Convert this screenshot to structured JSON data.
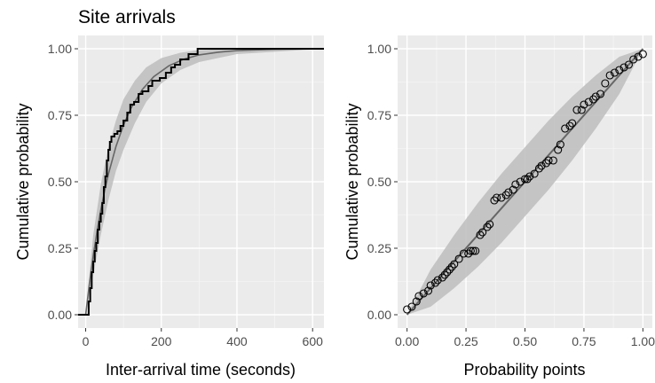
{
  "chart_data": [
    {
      "type": "line",
      "title": "Site arrivals",
      "xlabel": "Inter-arrival time (seconds)",
      "ylabel": "Cumulative probability",
      "xlim": [
        -20,
        630
      ],
      "ylim": [
        -0.05,
        1.05
      ],
      "xticks": [
        0,
        200,
        400,
        600
      ],
      "yticks": [
        "0.00",
        "0.25",
        "0.50",
        "0.75",
        "1.00"
      ],
      "grid": true,
      "background": "#ebebeb",
      "series": [
        {
          "kind": "empirical-step",
          "color": "#000000",
          "points": [
            [
              -20,
              0
            ],
            [
              5,
              0
            ],
            [
              8,
              0.05
            ],
            [
              12,
              0.1
            ],
            [
              16,
              0.16
            ],
            [
              20,
              0.2
            ],
            [
              24,
              0.24
            ],
            [
              28,
              0.27
            ],
            [
              32,
              0.32
            ],
            [
              36,
              0.35
            ],
            [
              40,
              0.38
            ],
            [
              44,
              0.42
            ],
            [
              48,
              0.48
            ],
            [
              52,
              0.52
            ],
            [
              56,
              0.58
            ],
            [
              60,
              0.62
            ],
            [
              64,
              0.65
            ],
            [
              68,
              0.67
            ],
            [
              76,
              0.68
            ],
            [
              84,
              0.69
            ],
            [
              92,
              0.71
            ],
            [
              100,
              0.73
            ],
            [
              110,
              0.76
            ],
            [
              118,
              0.79
            ],
            [
              128,
              0.8
            ],
            [
              140,
              0.83
            ],
            [
              150,
              0.84
            ],
            [
              166,
              0.86
            ],
            [
              176,
              0.88
            ],
            [
              196,
              0.89
            ],
            [
              212,
              0.91
            ],
            [
              226,
              0.93
            ],
            [
              236,
              0.94
            ],
            [
              250,
              0.96
            ],
            [
              272,
              0.98
            ],
            [
              296,
              1.0
            ],
            [
              630,
              1.0
            ]
          ]
        },
        {
          "kind": "fitted-cdf",
          "color": "#666666",
          "rate": 0.0125,
          "x": [
            0,
            10,
            20,
            30,
            40,
            50,
            60,
            80,
            100,
            120,
            150,
            180,
            220,
            260,
            300,
            350,
            400,
            500,
            630
          ],
          "y": [
            0,
            0.118,
            0.221,
            0.313,
            0.393,
            0.465,
            0.528,
            0.632,
            0.713,
            0.777,
            0.847,
            0.895,
            0.936,
            0.961,
            0.977,
            0.987,
            0.993,
            0.998,
            1.0
          ]
        }
      ],
      "band": {
        "color": "#bdbdbd",
        "x": [
          0,
          20,
          40,
          60,
          80,
          100,
          130,
          160,
          200,
          250,
          300,
          400,
          630
        ],
        "lower": [
          0,
          0.15,
          0.3,
          0.43,
          0.54,
          0.62,
          0.72,
          0.8,
          0.87,
          0.92,
          0.95,
          0.98,
          1.0
        ],
        "upper": [
          0,
          0.3,
          0.49,
          0.63,
          0.73,
          0.81,
          0.88,
          0.93,
          0.965,
          0.985,
          0.995,
          1.0,
          1.0
        ]
      }
    },
    {
      "type": "scatter",
      "xlabel": "Probability points",
      "ylabel": "Cumulative probability",
      "xlim": [
        -0.04,
        1.04
      ],
      "ylim": [
        -0.05,
        1.05
      ],
      "xticks": [
        "0.00",
        "0.25",
        "0.50",
        "0.75",
        "1.00"
      ],
      "yticks": [
        "0.00",
        "0.25",
        "0.50",
        "0.75",
        "1.00"
      ],
      "grid": true,
      "background": "#ebebeb",
      "reference_line": {
        "x": [
          0,
          1
        ],
        "y": [
          0,
          1
        ],
        "color": "#666666"
      },
      "band": {
        "color": "#bdbdbd",
        "x": [
          0,
          0.1,
          0.2,
          0.3,
          0.4,
          0.5,
          0.6,
          0.7,
          0.8,
          0.9,
          1.0
        ],
        "lower": [
          0,
          0.03,
          0.1,
          0.18,
          0.27,
          0.37,
          0.47,
          0.58,
          0.7,
          0.83,
          1.0
        ],
        "upper": [
          0,
          0.17,
          0.3,
          0.42,
          0.53,
          0.63,
          0.73,
          0.82,
          0.9,
          0.97,
          1.0
        ]
      },
      "points": {
        "x": [
          0.0,
          0.02,
          0.04,
          0.05,
          0.07,
          0.09,
          0.1,
          0.12,
          0.13,
          0.15,
          0.16,
          0.17,
          0.18,
          0.19,
          0.2,
          0.22,
          0.24,
          0.26,
          0.27,
          0.28,
          0.29,
          0.31,
          0.32,
          0.34,
          0.35,
          0.37,
          0.38,
          0.4,
          0.42,
          0.43,
          0.45,
          0.46,
          0.48,
          0.5,
          0.51,
          0.52,
          0.54,
          0.56,
          0.57,
          0.59,
          0.6,
          0.62,
          0.64,
          0.65,
          0.67,
          0.69,
          0.7,
          0.72,
          0.74,
          0.75,
          0.77,
          0.79,
          0.8,
          0.82,
          0.84,
          0.86,
          0.88,
          0.9,
          0.92,
          0.94,
          0.96,
          0.98,
          1.0
        ],
        "y": [
          0.02,
          0.03,
          0.05,
          0.07,
          0.08,
          0.09,
          0.11,
          0.12,
          0.13,
          0.14,
          0.15,
          0.16,
          0.17,
          0.18,
          0.19,
          0.21,
          0.23,
          0.23,
          0.24,
          0.24,
          0.24,
          0.3,
          0.31,
          0.33,
          0.34,
          0.43,
          0.44,
          0.44,
          0.45,
          0.46,
          0.47,
          0.49,
          0.5,
          0.51,
          0.51,
          0.52,
          0.53,
          0.55,
          0.56,
          0.57,
          0.58,
          0.58,
          0.62,
          0.64,
          0.7,
          0.71,
          0.72,
          0.77,
          0.77,
          0.79,
          0.8,
          0.81,
          0.82,
          0.83,
          0.87,
          0.9,
          0.91,
          0.92,
          0.93,
          0.94,
          0.96,
          0.97,
          0.98
        ]
      }
    }
  ]
}
